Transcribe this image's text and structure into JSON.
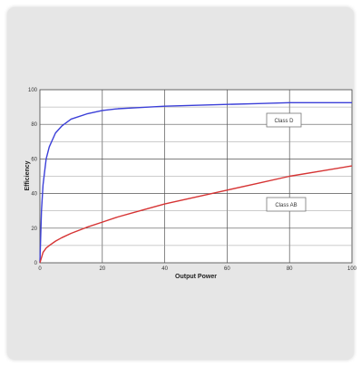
{
  "chart_data": {
    "type": "line",
    "title": "",
    "xlabel": "Output Power",
    "ylabel": "Efficiency",
    "xlim": [
      0,
      100
    ],
    "ylim": [
      0,
      100
    ],
    "x_ticks": [
      "0",
      "20",
      "40",
      "60",
      "80",
      "100"
    ],
    "y_ticks": [
      "0",
      "20",
      "40",
      "60",
      "80",
      "100"
    ],
    "grid": true,
    "x": [
      0,
      0.5,
      1,
      2,
      3,
      5,
      7,
      10,
      15,
      20,
      25,
      30,
      40,
      50,
      60,
      70,
      80,
      90,
      100
    ],
    "series": [
      {
        "name": "Class D",
        "color": "#3b3fd8",
        "values": [
          0,
          30,
          45,
          60,
          67,
          75,
          79,
          83,
          86,
          88,
          89,
          89.5,
          90.5,
          91,
          91.5,
          92,
          92.5,
          92.5,
          92.5
        ]
      },
      {
        "name": "Class AB",
        "color": "#d63434",
        "values": [
          0,
          3,
          6,
          8.5,
          10,
          12.5,
          14.5,
          17,
          20.5,
          23.5,
          26.5,
          29,
          34,
          38,
          42,
          46,
          50,
          53,
          56
        ]
      }
    ],
    "legend": [
      "Class D",
      "Class AB"
    ]
  }
}
